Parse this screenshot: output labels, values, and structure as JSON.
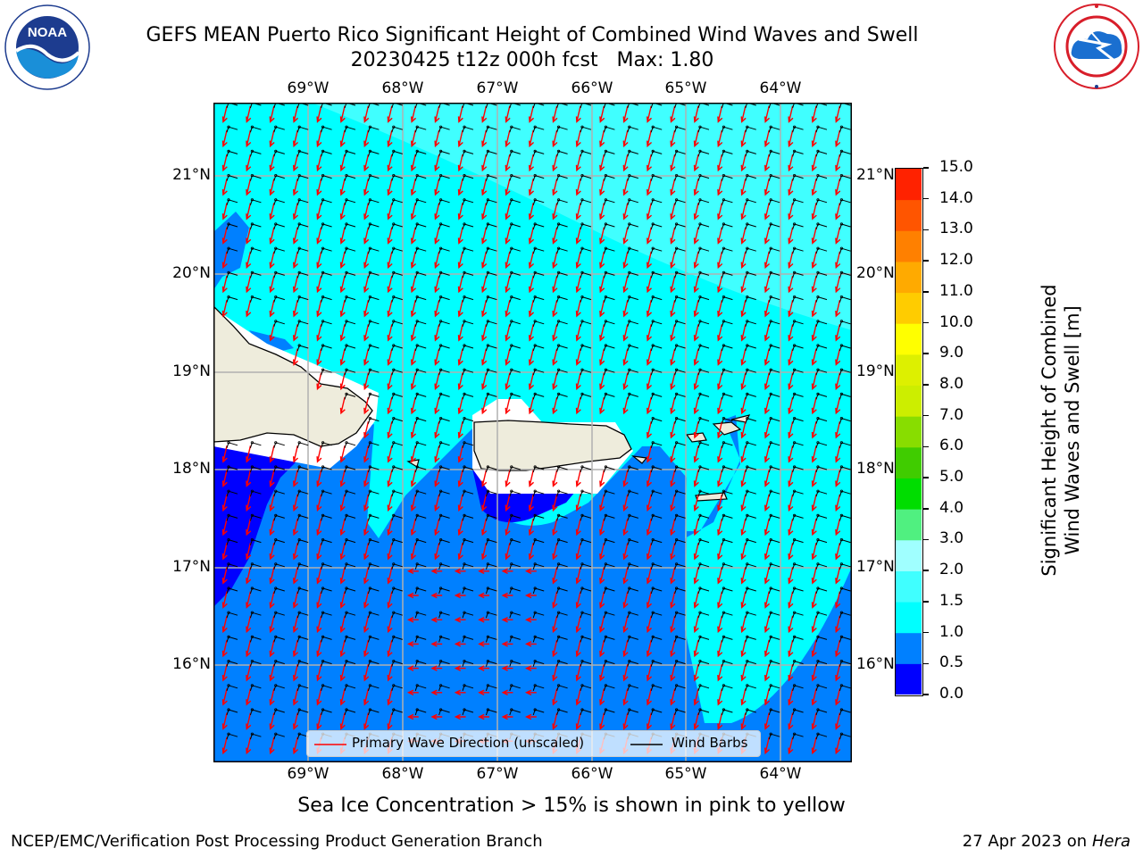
{
  "title": {
    "line1": "GEFS MEAN Puerto Rico Significant Height of Combined Wind Waves and Swell",
    "line2": "20230425 t12z 000h fcst   Max: 1.80"
  },
  "logos": {
    "left": {
      "text": "NOAA",
      "ring_text": "NATIONAL OCEANIC AND ATMOSPHERIC ADMINISTRATION · U.S. DEPARTMENT OF COMMERCE"
    },
    "right": {
      "ring_text": "NATIONAL WEATHER SERVICE"
    }
  },
  "map": {
    "lon_labels": [
      "69°W",
      "68°W",
      "67°W",
      "66°W",
      "65°W",
      "64°W"
    ],
    "lat_labels": [
      "21°N",
      "20°N",
      "19°N",
      "18°N",
      "17°N",
      "16°N"
    ],
    "colors": {
      "land": "#eeecdc",
      "water_light": "#00ffff",
      "water_lighter": "#40ffff",
      "water_mid": "#0080ff",
      "water_dark": "#0000ff",
      "arrow": "#ff0000"
    },
    "legend": {
      "wave_dir_label": "Primary Wave Direction (unscaled)",
      "wind_barb_label": "Wind Barbs"
    }
  },
  "colorbar": {
    "title": "Significant Height of Combined\nWind Waves and Swell [m]",
    "ticks": [
      "0.0",
      "0.5",
      "1.0",
      "1.5",
      "2.0",
      "3.0",
      "4.0",
      "5.0",
      "6.0",
      "7.0",
      "8.0",
      "9.0",
      "10.0",
      "11.0",
      "12.0",
      "13.0",
      "14.0",
      "15.0"
    ],
    "colors": [
      "#0000ff",
      "#0080ff",
      "#00ffff",
      "#40ffff",
      "#a0ffff",
      "#50f080",
      "#00dd00",
      "#40cc00",
      "#88dd00",
      "#ccee00",
      "#ddf000",
      "#ffff00",
      "#ffcc00",
      "#ffaa00",
      "#ff8000",
      "#ff5500",
      "#ff2200"
    ]
  },
  "note": "Sea Ice Concentration > 15% is shown in pink to yellow",
  "footer": {
    "left": "NCEP/EMC/Verification Post Processing Product Generation Branch",
    "right_prefix": "27 Apr 2023 on ",
    "right_host": "Hera"
  }
}
